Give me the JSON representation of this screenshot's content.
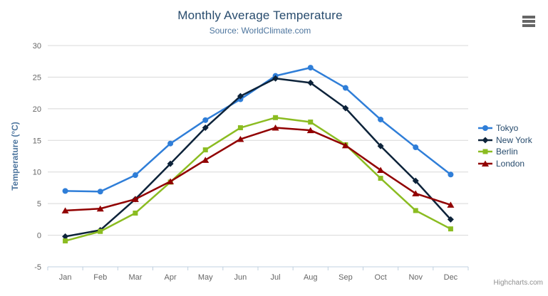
{
  "header": {
    "menu_icon": "hamburger-icon"
  },
  "credits": "Highcharts.com",
  "chart_data": {
    "type": "line",
    "title": "Monthly Average Temperature",
    "subtitle": "Source: WorldClimate.com",
    "xlabel": "",
    "ylabel": "Temperature (°C)",
    "categories": [
      "Jan",
      "Feb",
      "Mar",
      "Apr",
      "May",
      "Jun",
      "Jul",
      "Aug",
      "Sep",
      "Oct",
      "Nov",
      "Dec"
    ],
    "ylim": [
      -5,
      30
    ],
    "yticks": [
      -5,
      0,
      5,
      10,
      15,
      20,
      25,
      30
    ],
    "grid": "horizontal",
    "legend_position": "right",
    "series": [
      {
        "name": "Tokyo",
        "color": "#2f7ed8",
        "marker": "circle",
        "values": [
          7.0,
          6.9,
          9.5,
          14.5,
          18.2,
          21.5,
          25.2,
          26.5,
          23.3,
          18.3,
          13.9,
          9.6
        ]
      },
      {
        "name": "New York",
        "color": "#0d233a",
        "marker": "diamond",
        "values": [
          -0.2,
          0.8,
          5.7,
          11.3,
          17.0,
          22.0,
          24.8,
          24.1,
          20.1,
          14.1,
          8.6,
          2.5
        ]
      },
      {
        "name": "Berlin",
        "color": "#8bbc21",
        "marker": "square",
        "values": [
          -0.9,
          0.6,
          3.5,
          8.4,
          13.5,
          17.0,
          18.6,
          17.9,
          14.3,
          9.0,
          3.9,
          1.0
        ]
      },
      {
        "name": "London",
        "color": "#910000",
        "marker": "triangle",
        "values": [
          3.9,
          4.2,
          5.7,
          8.5,
          11.9,
          15.2,
          17.0,
          16.6,
          14.2,
          10.3,
          6.6,
          4.8
        ]
      }
    ],
    "style": {
      "title_color": "#274b6d",
      "subtitle_color": "#4d759e",
      "axis_title_color": "#4d759e",
      "tick_label_color": "#666666",
      "grid_color": "#d8d8d8",
      "axis_line_color": "#c0d0e0",
      "legend_text_color": "#274b6d",
      "credits_color": "#909090",
      "menu_icon_color": "#666666"
    }
  }
}
